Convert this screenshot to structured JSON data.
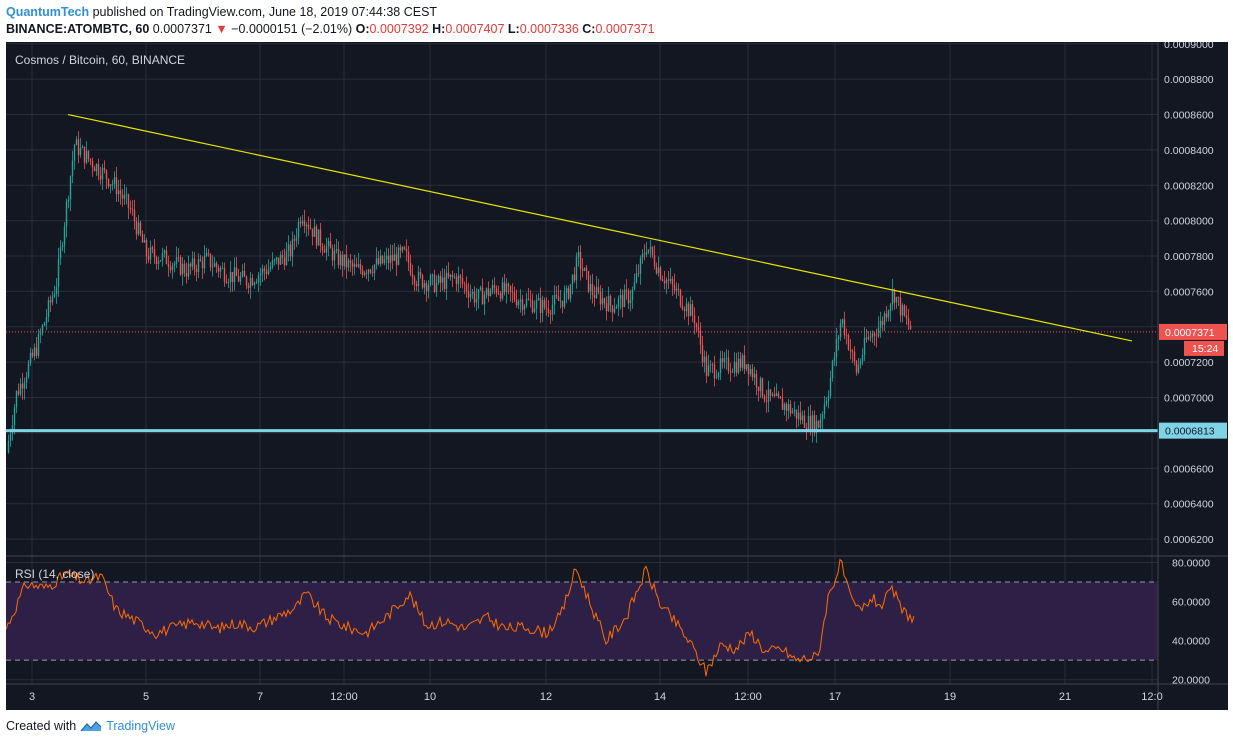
{
  "header": {
    "author": "QuantumTech",
    "published_text": "published on TradingView.com, June 18, 2019 07:44:38 CEST",
    "symbol": "BINANCE:ATOMBTC, 60",
    "last_price": "0.0007371",
    "change_arrow": "▼",
    "change": "−0.0000151 (−2.01%)",
    "open_label": "O:",
    "open": "0.0007392",
    "high_label": "H:",
    "high": "0.0007407",
    "low_label": "L:",
    "low": "0.0007336",
    "close_label": "C:",
    "close": "0.0007371"
  },
  "footer": {
    "created_with": "Created with",
    "brand": "TradingView"
  },
  "colors": {
    "background": "#131722",
    "grid": "#2a2e39",
    "bull": "#26a69a",
    "bear": "#ef5350",
    "trendline": "#e6e600",
    "support": "#7fd3e6",
    "rsi_line": "#ff6d00",
    "rsi_band": "#2e1f47",
    "axis_text": "#d1d4dc",
    "price_badge": "#ef5350"
  },
  "chart_data": [
    {
      "type": "candlestick",
      "title": "Cosmos / Bitcoin, 60, BINANCE",
      "y_tick_labels": [
        "0.0006200",
        "0.0006400",
        "0.0006600",
        "0.0006800",
        "0.0007000",
        "0.0007200",
        "0.0007400",
        "0.0007600",
        "0.0007800",
        "0.0008000",
        "0.0008200",
        "0.0008400",
        "0.0008600",
        "0.0008800",
        "0.0009000"
      ],
      "ylim": [
        0.000611,
        0.000901
      ],
      "x_tick_labels": [
        "3",
        "5",
        "7",
        "12:00",
        "10",
        "12",
        "14",
        "12:00",
        "17",
        "19",
        "21",
        "12:0"
      ],
      "price_path": [
        {
          "x": 0,
          "price": 0.000669
        },
        {
          "x": 10,
          "price": 0.000702
        },
        {
          "x": 30,
          "price": 0.000728
        },
        {
          "x": 50,
          "price": 0.000765
        },
        {
          "x": 68,
          "price": 0.000843
        },
        {
          "x": 80,
          "price": 0.000836
        },
        {
          "x": 95,
          "price": 0.000828
        },
        {
          "x": 110,
          "price": 0.000819
        },
        {
          "x": 125,
          "price": 0.000805
        },
        {
          "x": 140,
          "price": 0.000781
        },
        {
          "x": 158,
          "price": 0.000779
        },
        {
          "x": 180,
          "price": 0.000772
        },
        {
          "x": 200,
          "price": 0.000778
        },
        {
          "x": 220,
          "price": 0.00077
        },
        {
          "x": 240,
          "price": 0.000766
        },
        {
          "x": 262,
          "price": 0.000773
        },
        {
          "x": 285,
          "price": 0.000783
        },
        {
          "x": 295,
          "price": 0.000805
        },
        {
          "x": 310,
          "price": 0.000791
        },
        {
          "x": 330,
          "price": 0.000779
        },
        {
          "x": 350,
          "price": 0.000772
        },
        {
          "x": 375,
          "price": 0.000776
        },
        {
          "x": 398,
          "price": 0.000781
        },
        {
          "x": 410,
          "price": 0.000767
        },
        {
          "x": 430,
          "price": 0.000764
        },
        {
          "x": 450,
          "price": 0.000768
        },
        {
          "x": 470,
          "price": 0.000756
        },
        {
          "x": 490,
          "price": 0.000762
        },
        {
          "x": 515,
          "price": 0.000755
        },
        {
          "x": 540,
          "price": 0.000751
        },
        {
          "x": 560,
          "price": 0.000757
        },
        {
          "x": 572,
          "price": 0.000778
        },
        {
          "x": 585,
          "price": 0.00076
        },
        {
          "x": 605,
          "price": 0.000752
        },
        {
          "x": 625,
          "price": 0.000758
        },
        {
          "x": 640,
          "price": 0.000786
        },
        {
          "x": 655,
          "price": 0.00077
        },
        {
          "x": 672,
          "price": 0.000758
        },
        {
          "x": 688,
          "price": 0.000745
        },
        {
          "x": 700,
          "price": 0.000715
        },
        {
          "x": 720,
          "price": 0.000718
        },
        {
          "x": 740,
          "price": 0.00072
        },
        {
          "x": 760,
          "price": 0.0007
        },
        {
          "x": 780,
          "price": 0.000695
        },
        {
          "x": 800,
          "price": 0.000686
        },
        {
          "x": 812,
          "price": 0.000685
        },
        {
          "x": 822,
          "price": 0.000705
        },
        {
          "x": 835,
          "price": 0.000745
        },
        {
          "x": 850,
          "price": 0.000715
        },
        {
          "x": 860,
          "price": 0.000732
        },
        {
          "x": 875,
          "price": 0.000742
        },
        {
          "x": 887,
          "price": 0.00076
        },
        {
          "x": 898,
          "price": 0.000745
        },
        {
          "x": 905,
          "price": 0.000738
        }
      ],
      "trendline": [
        {
          "x": 62,
          "price": 0.00086
        },
        {
          "x": 1126,
          "price": 0.000732
        }
      ],
      "support_level": 0.0006813,
      "support_label": "0.0006813",
      "last_price_line": 0.0007371,
      "last_price_label": "0.0007371",
      "countdown": "15:24"
    },
    {
      "type": "line",
      "title": "RSI (14, close)",
      "y_tick_labels": [
        "20.0000",
        "40.0000",
        "60.0000",
        "80.0000"
      ],
      "ylim": [
        17.8,
        83.3
      ],
      "overbought": 70,
      "oversold": 30,
      "rsi_path": [
        {
          "x": 0,
          "rsi": 46
        },
        {
          "x": 20,
          "rsi": 69
        },
        {
          "x": 40,
          "rsi": 67
        },
        {
          "x": 60,
          "rsi": 74
        },
        {
          "x": 80,
          "rsi": 70
        },
        {
          "x": 95,
          "rsi": 73
        },
        {
          "x": 110,
          "rsi": 56
        },
        {
          "x": 130,
          "rsi": 50
        },
        {
          "x": 150,
          "rsi": 44
        },
        {
          "x": 170,
          "rsi": 47
        },
        {
          "x": 190,
          "rsi": 50
        },
        {
          "x": 210,
          "rsi": 46
        },
        {
          "x": 230,
          "rsi": 49
        },
        {
          "x": 250,
          "rsi": 47
        },
        {
          "x": 270,
          "rsi": 52
        },
        {
          "x": 290,
          "rsi": 57
        },
        {
          "x": 300,
          "rsi": 64
        },
        {
          "x": 320,
          "rsi": 52
        },
        {
          "x": 340,
          "rsi": 47
        },
        {
          "x": 360,
          "rsi": 44
        },
        {
          "x": 380,
          "rsi": 52
        },
        {
          "x": 403,
          "rsi": 64
        },
        {
          "x": 420,
          "rsi": 48
        },
        {
          "x": 440,
          "rsi": 50
        },
        {
          "x": 460,
          "rsi": 46
        },
        {
          "x": 480,
          "rsi": 52
        },
        {
          "x": 500,
          "rsi": 46
        },
        {
          "x": 520,
          "rsi": 47
        },
        {
          "x": 540,
          "rsi": 44
        },
        {
          "x": 555,
          "rsi": 53
        },
        {
          "x": 570,
          "rsi": 77
        },
        {
          "x": 585,
          "rsi": 58
        },
        {
          "x": 600,
          "rsi": 40
        },
        {
          "x": 620,
          "rsi": 52
        },
        {
          "x": 640,
          "rsi": 76
        },
        {
          "x": 655,
          "rsi": 58
        },
        {
          "x": 670,
          "rsi": 49
        },
        {
          "x": 685,
          "rsi": 38
        },
        {
          "x": 700,
          "rsi": 24
        },
        {
          "x": 715,
          "rsi": 38
        },
        {
          "x": 730,
          "rsi": 36
        },
        {
          "x": 745,
          "rsi": 44
        },
        {
          "x": 760,
          "rsi": 34
        },
        {
          "x": 775,
          "rsi": 36
        },
        {
          "x": 790,
          "rsi": 30
        },
        {
          "x": 812,
          "rsi": 32
        },
        {
          "x": 822,
          "rsi": 62
        },
        {
          "x": 835,
          "rsi": 80
        },
        {
          "x": 845,
          "rsi": 60
        },
        {
          "x": 855,
          "rsi": 55
        },
        {
          "x": 865,
          "rsi": 62
        },
        {
          "x": 875,
          "rsi": 58
        },
        {
          "x": 887,
          "rsi": 66
        },
        {
          "x": 895,
          "rsi": 56
        },
        {
          "x": 908,
          "rsi": 51
        }
      ]
    }
  ]
}
